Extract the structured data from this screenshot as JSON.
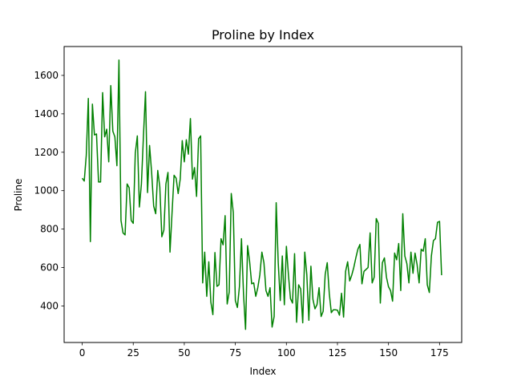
{
  "chart_data": {
    "type": "line",
    "title": "Proline by Index",
    "xlabel": "Index",
    "ylabel": "Proline",
    "xlim": [
      -8.85,
      185.85
    ],
    "ylim": [
      209.75,
      1750.25
    ],
    "xticks": [
      0,
      25,
      50,
      75,
      100,
      125,
      150,
      175
    ],
    "yticks": [
      400,
      600,
      800,
      1000,
      1200,
      1400,
      1600
    ],
    "grid": false,
    "legend": "none",
    "series_color": "#008000",
    "series": [
      {
        "x_start": 0,
        "values": [
          1065,
          1050,
          1185,
          1480,
          735,
          1450,
          1290,
          1295,
          1045,
          1045,
          1510,
          1280,
          1320,
          1150,
          1547,
          1310,
          1280,
          1130,
          1680,
          845,
          780,
          770,
          1035,
          1015,
          845,
          830,
          1195,
          1285,
          915,
          1035,
          1285,
          1515,
          990,
          1235,
          1095,
          920,
          880,
          1105,
          1020,
          760,
          795,
          1035,
          1095,
          680,
          885,
          1080,
          1065,
          985,
          1060,
          1260,
          1150,
          1265,
          1190,
          1375,
          1060,
          1120,
          970,
          1270,
          1285,
          520,
          680,
          450,
          630,
          420,
          355,
          678,
          502,
          510,
          750,
          718,
          870,
          410,
          472,
          985,
          886,
          428,
          392,
          500,
          750,
          463,
          278,
          714,
          630,
          515,
          520,
          450,
          495,
          562,
          680,
          625,
          480,
          450,
          495,
          290,
          345,
          937,
          625,
          428,
          660,
          406,
          710,
          562,
          438,
          415,
          672,
          315,
          510,
          488,
          312,
          680,
          562,
          325,
          607,
          434,
          385,
          407,
          495,
          345,
          372,
          564,
          625,
          465,
          365,
          380,
          380,
          378,
          352,
          466,
          342,
          580,
          630,
          530,
          560,
          600,
          650,
          695,
          720,
          515,
          580,
          590,
          600,
          780,
          520,
          550,
          855,
          830,
          415,
          625,
          650,
          550,
          500,
          480,
          425,
          675,
          640,
          725,
          480,
          880,
          660,
          620,
          520,
          680,
          570,
          675,
          615,
          520,
          695,
          685,
          750,
          510,
          470,
          660,
          740,
          750,
          835,
          840,
          560
        ]
      }
    ]
  }
}
